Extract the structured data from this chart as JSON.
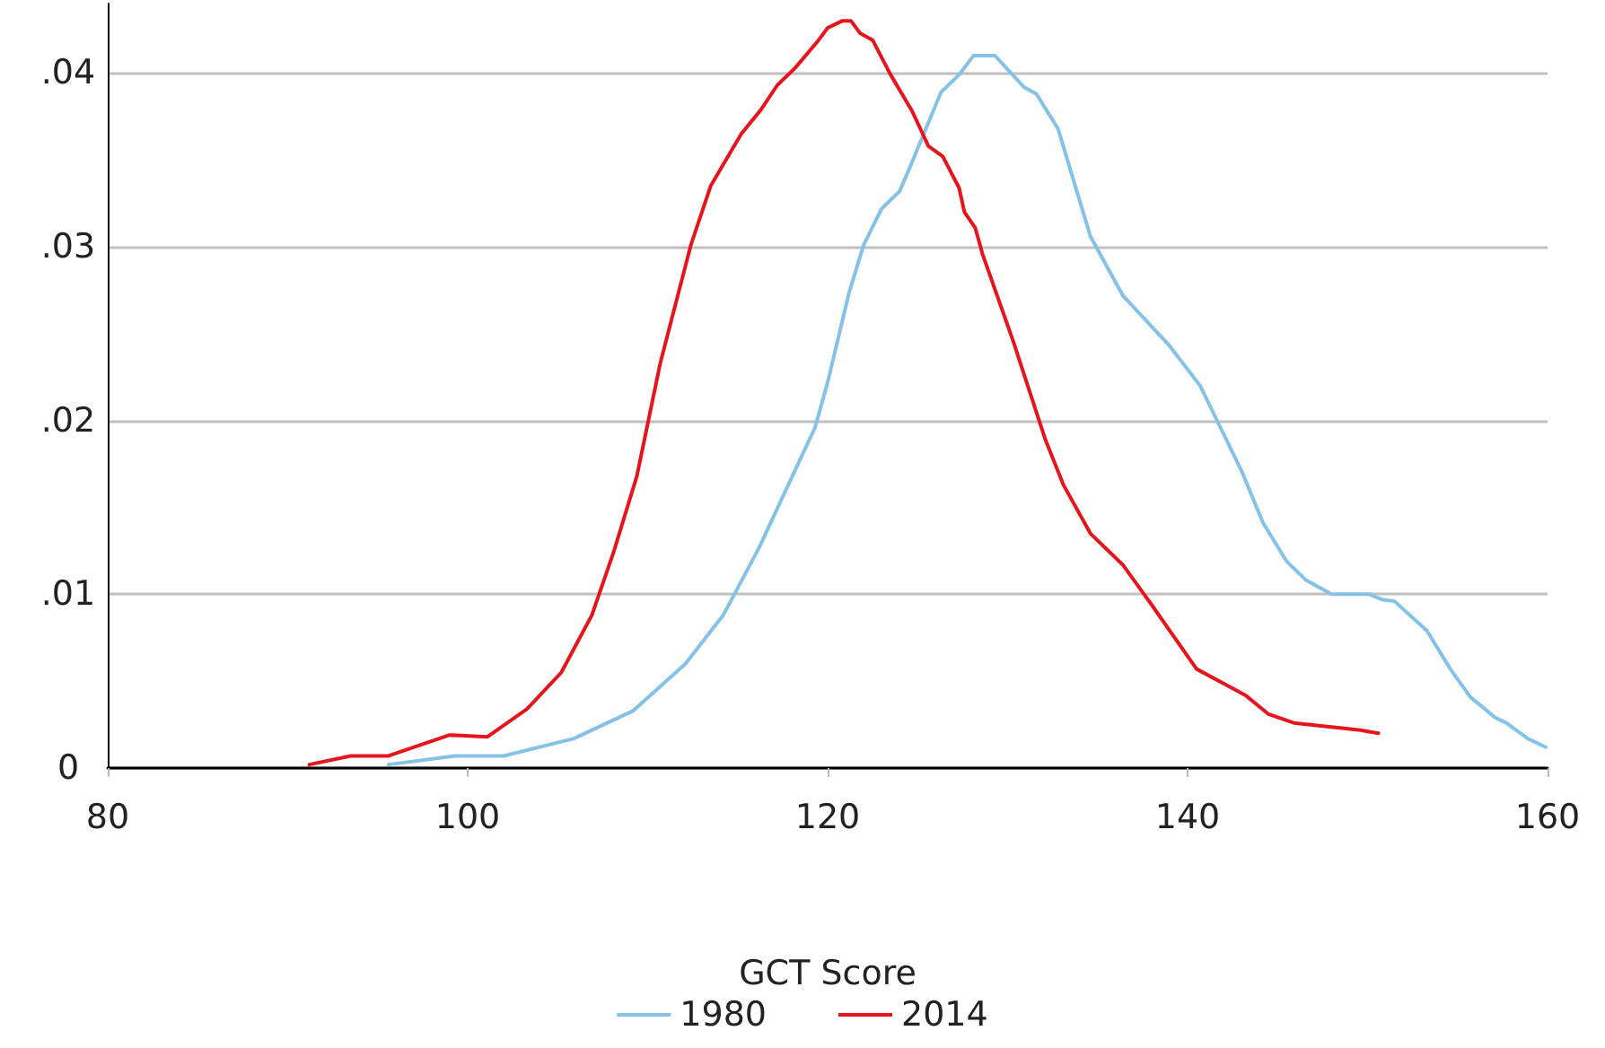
{
  "chart_data": {
    "type": "line",
    "xlabel": "GCT Score",
    "xlim": [
      80,
      160
    ],
    "xticks": [
      80,
      100,
      120,
      140,
      160
    ],
    "ylim": [
      0,
      0.044
    ],
    "yticks": [
      {
        "value": 0,
        "label": "0"
      },
      {
        "value": 0.01,
        "label": ".01"
      },
      {
        "value": 0.02,
        "label": ".02"
      },
      {
        "value": 0.03,
        "label": ".03"
      },
      {
        "value": 0.04,
        "label": ".04"
      }
    ],
    "grid": "y",
    "legend": "bottom",
    "marker": "none",
    "line_style": "solid",
    "series": [
      {
        "name": "1980",
        "color": "#85c2e8",
        "x": [
          95.6,
          99.3,
          102.0,
          105.9,
          109.2,
          112.1,
          114.2,
          116.2,
          117.5,
          119.3,
          120.0,
          121.2,
          122.0,
          123.0,
          124.0,
          124.5,
          126.3,
          127.3,
          128.1,
          129.3,
          130.9,
          131.6,
          132.8,
          134.6,
          136.4,
          139.0,
          140.7,
          143.0,
          144.2,
          145.5,
          146.6,
          148.0,
          150.1,
          150.8,
          151.5,
          153.3,
          154.6,
          155.7,
          157.1,
          157.7,
          158.9,
          159.9
        ],
        "values": [
          0.0002,
          0.0007,
          0.0007,
          0.0017,
          0.0033,
          0.006,
          0.0088,
          0.0127,
          0.0156,
          0.0196,
          0.0222,
          0.0274,
          0.0301,
          0.0322,
          0.0332,
          0.0344,
          0.0389,
          0.0399,
          0.041,
          0.041,
          0.0392,
          0.0388,
          0.0368,
          0.0306,
          0.0272,
          0.0243,
          0.022,
          0.0171,
          0.0141,
          0.0119,
          0.0108,
          0.01,
          0.01,
          0.0097,
          0.0096,
          0.0079,
          0.0057,
          0.0041,
          0.0029,
          0.0026,
          0.0017,
          0.0012
        ]
      },
      {
        "name": "2014",
        "color": "#e8141c",
        "x": [
          91.2,
          93.5,
          95.6,
          99.0,
          101.1,
          103.3,
          105.2,
          106.9,
          108.1,
          109.4,
          110.7,
          112.4,
          113.5,
          115.2,
          116.3,
          117.2,
          118.2,
          119.5,
          120.0,
          120.8,
          121.3,
          121.8,
          122.5,
          123.5,
          124.7,
          125.6,
          126.4,
          127.3,
          127.6,
          128.2,
          128.6,
          130.3,
          132.1,
          133.1,
          134.6,
          136.4,
          138.0,
          140.5,
          143.2,
          144.5,
          145.9,
          149.5,
          150.6
        ],
        "values": [
          0.0002,
          0.0007,
          0.0007,
          0.0019,
          0.0018,
          0.0034,
          0.0055,
          0.0088,
          0.0124,
          0.0168,
          0.0233,
          0.0301,
          0.0335,
          0.0365,
          0.0379,
          0.0393,
          0.0403,
          0.0419,
          0.0426,
          0.043,
          0.043,
          0.0423,
          0.0419,
          0.0399,
          0.0378,
          0.0358,
          0.0352,
          0.0334,
          0.032,
          0.0311,
          0.0296,
          0.0246,
          0.0189,
          0.0163,
          0.0135,
          0.0117,
          0.0094,
          0.0057,
          0.0042,
          0.0031,
          0.0026,
          0.0022,
          0.002
        ]
      }
    ]
  }
}
